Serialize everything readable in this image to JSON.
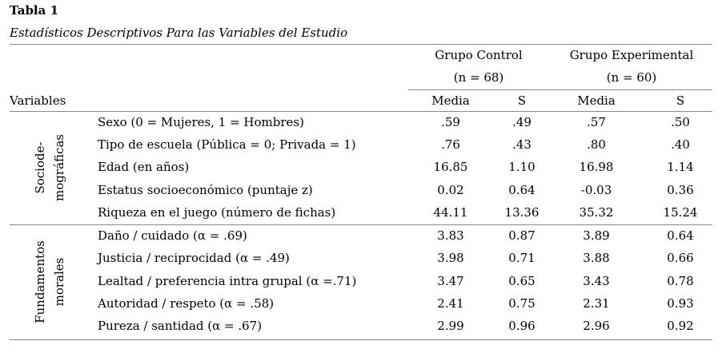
{
  "title": "Tabla 1",
  "subtitle": "Estadísticos Descriptivos Para las Variables del Estudio",
  "header": {
    "variables": "Variables",
    "group_control": "Grupo Control",
    "group_control_n": "(n = 68)",
    "group_exp": "Grupo Experimental",
    "group_exp_n": "(n = 60)",
    "media": "Media",
    "s": "S"
  },
  "sections": [
    {
      "label_1": "Sociode-",
      "label_2": "mográficas",
      "rows": [
        {
          "variable": "Sexo (0 = Mujeres, 1 = Hombres)",
          "c_media": ".59",
          "c_s": ".49",
          "e_media": ".57",
          "e_s": ".50"
        },
        {
          "variable": "Tipo de escuela (Pública = 0; Privada = 1)",
          "c_media": ".76",
          "c_s": ".43",
          "e_media": ".80",
          "e_s": ".40"
        },
        {
          "variable": "Edad (en años)",
          "c_media": "16.85",
          "c_s": "1.10",
          "e_media": "16.98",
          "e_s": "1.14"
        },
        {
          "variable": "Estatus socioeconómico (puntaje z)",
          "c_media": "0.02",
          "c_s": "0.64",
          "e_media": "-0.03",
          "e_s": "0.36"
        },
        {
          "variable": "Riqueza en el juego (número de fichas)",
          "c_media": "44.11",
          "c_s": "13.36",
          "e_media": "35.32",
          "e_s": "15.24"
        }
      ]
    },
    {
      "label_1": "Fundamentos",
      "label_2": "morales",
      "rows": [
        {
          "variable": "Daño / cuidado (α = .69)",
          "c_media": "3.83",
          "c_s": "0.87",
          "e_media": "3.89",
          "e_s": "0.64"
        },
        {
          "variable": "Justicia / reciprocidad (α = .49)",
          "c_media": "3.98",
          "c_s": "0.71",
          "e_media": "3.88",
          "e_s": "0.66"
        },
        {
          "variable": "Lealtad / preferencia intra grupal (α =.71)",
          "c_media": "3.47",
          "c_s": "0.65",
          "e_media": "3.43",
          "e_s": "0.78"
        },
        {
          "variable": "Autoridad / respeto (α = .58)",
          "c_media": "2.41",
          "c_s": "0.75",
          "e_media": "2.31",
          "e_s": "0.93"
        },
        {
          "variable": "Pureza / santidad (α = .67)",
          "c_media": "2.99",
          "c_s": "0.96",
          "e_media": "2.96",
          "e_s": "0.92"
        }
      ]
    }
  ]
}
